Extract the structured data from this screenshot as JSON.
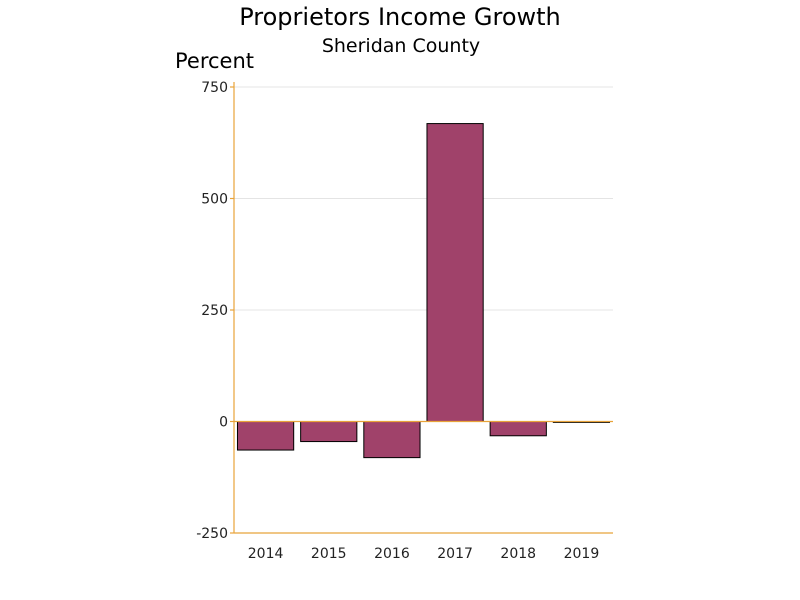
{
  "chart_data": {
    "type": "bar",
    "title": "Proprietors Income Growth",
    "subtitle": "Sheridan County",
    "ylabel": "Percent",
    "xlabel": "",
    "categories": [
      "2014",
      "2015",
      "2016",
      "2017",
      "2018",
      "2019"
    ],
    "values": [
      -64,
      -45,
      -81,
      668,
      -32,
      -2
    ],
    "ylim": [
      -250,
      750
    ],
    "yticks": [
      -250,
      0,
      250,
      500,
      750
    ],
    "grid": true,
    "legend": "none",
    "colors": {
      "bar": "#a0426a",
      "axis": "#e8a33a",
      "grid": "#e4e4e4"
    }
  }
}
